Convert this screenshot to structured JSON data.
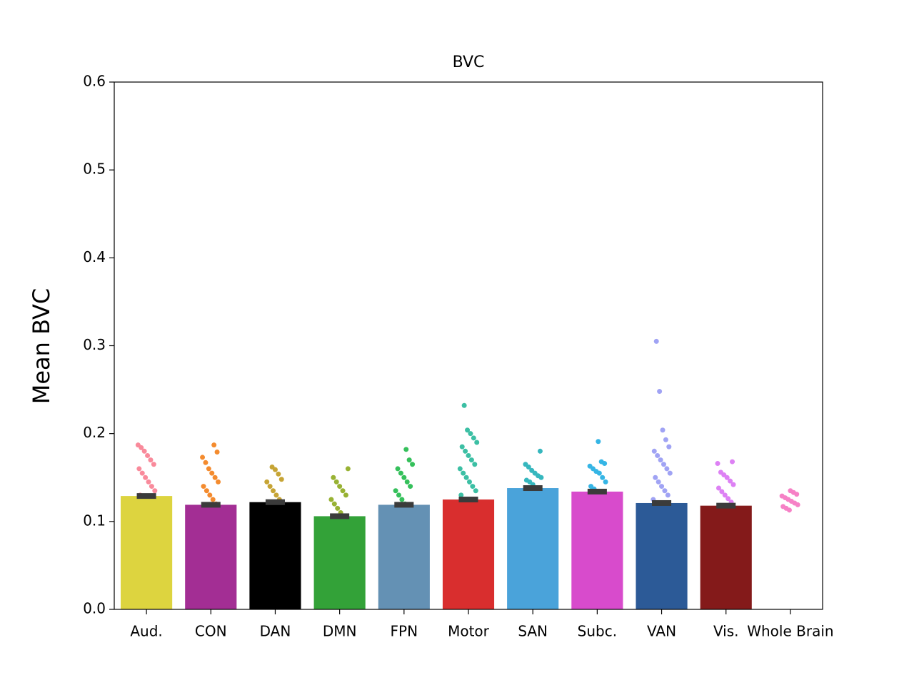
{
  "chart_data": {
    "type": "bar",
    "title": "BVC",
    "y_label": "Mean BVC",
    "categories": [
      "Aud.",
      "CON",
      "DAN",
      "DMN",
      "FPN",
      "Motor",
      "SAN",
      "Subc.",
      "VAN",
      "Vis.",
      "Whole Brain"
    ],
    "values": [
      0.129,
      0.119,
      0.122,
      0.106,
      0.119,
      0.125,
      0.138,
      0.134,
      0.121,
      0.118,
      null
    ],
    "colors": [
      "#ddd43f",
      "#a32e94",
      "#000000",
      "#33a238",
      "#6491b4",
      "#d92e2e",
      "#4aa3da",
      "#d84bcc",
      "#2c5a97",
      "#841a1a",
      "#f681c6"
    ],
    "point_colors": [
      "#f98a9b",
      "#f48b2e",
      "#c6a435",
      "#98b233",
      "#35c05b",
      "#3cbfa4",
      "#36b7be",
      "#35b5e5",
      "#a0a3f4",
      "#dd81f4",
      "#f681c6"
    ],
    "points": [
      [
        0.187,
        0.184,
        0.18,
        0.175,
        0.17,
        0.165,
        0.16,
        0.155,
        0.15,
        0.145,
        0.14,
        0.135,
        0.13
      ],
      [
        0.187,
        0.179,
        0.173,
        0.167,
        0.16,
        0.155,
        0.15,
        0.145,
        0.14,
        0.135,
        0.13,
        0.125,
        0.12
      ],
      [
        0.162,
        0.159,
        0.154,
        0.148,
        0.145,
        0.14,
        0.135,
        0.13,
        0.125
      ],
      [
        0.16,
        0.15,
        0.145,
        0.14,
        0.135,
        0.13,
        0.125,
        0.12,
        0.115,
        0.11
      ],
      [
        0.182,
        0.17,
        0.165,
        0.16,
        0.155,
        0.15,
        0.145,
        0.14,
        0.135,
        0.13,
        0.125,
        0.12
      ],
      [
        0.232,
        0.204,
        0.2,
        0.195,
        0.19,
        0.185,
        0.18,
        0.175,
        0.17,
        0.165,
        0.16,
        0.155,
        0.15,
        0.145,
        0.14,
        0.135,
        0.13
      ],
      [
        0.18,
        0.165,
        0.162,
        0.158,
        0.155,
        0.152,
        0.15,
        0.147,
        0.145,
        0.142
      ],
      [
        0.191,
        0.168,
        0.166,
        0.163,
        0.16,
        0.157,
        0.155,
        0.15,
        0.145,
        0.14,
        0.137
      ],
      [
        0.305,
        0.248,
        0.204,
        0.193,
        0.185,
        0.18,
        0.175,
        0.17,
        0.165,
        0.16,
        0.155,
        0.15,
        0.145,
        0.14,
        0.135,
        0.13,
        0.125
      ],
      [
        0.168,
        0.166,
        0.156,
        0.153,
        0.15,
        0.146,
        0.142,
        0.138,
        0.134,
        0.13,
        0.126,
        0.122
      ],
      [
        0.135,
        0.133,
        0.131,
        0.129,
        0.127,
        0.125,
        0.123,
        0.121,
        0.119,
        0.117,
        0.115,
        0.113
      ]
    ],
    "ylim": [
      0,
      0.6
    ],
    "yticks": [
      {
        "value": 0,
        "label": "0.0"
      },
      0.1,
      0.2,
      0.3,
      0.4,
      0.5,
      0.6
    ]
  }
}
